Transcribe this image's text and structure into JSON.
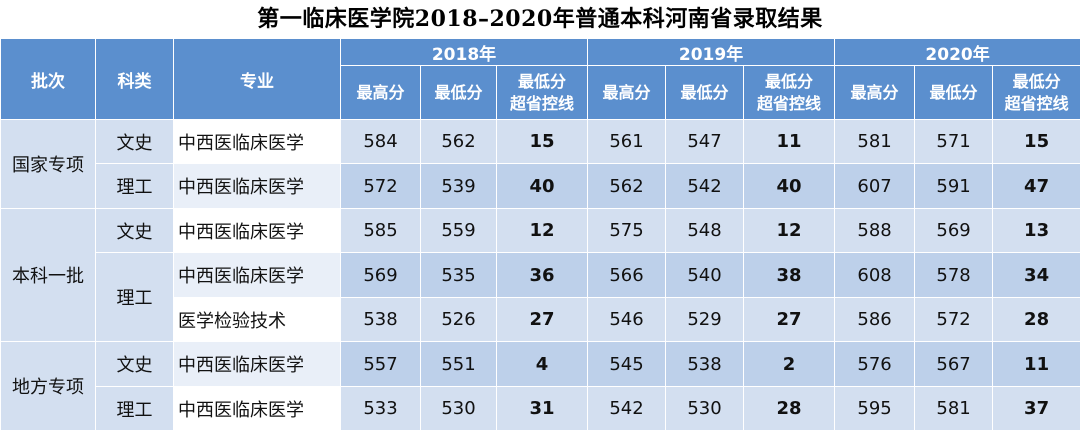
{
  "title": "第一临床医学院2018–2020年普通本科河南省录取结果",
  "headers": {
    "batch": "批次",
    "category": "科类",
    "major": "专业",
    "years": [
      "2018年",
      "2019年",
      "2020年"
    ],
    "max": "最高分",
    "min": "最低分",
    "over_line": [
      "最低分",
      "超省控线"
    ]
  },
  "rows": [
    {
      "batch": "国家专项",
      "category": "文史",
      "major": "中西医临床医学",
      "y2018": [
        "584",
        "562",
        "15"
      ],
      "y2019": [
        "561",
        "547",
        "11"
      ],
      "y2020": [
        "581",
        "571",
        "15"
      ]
    },
    {
      "batch": "",
      "category": "理工",
      "major": "中西医临床医学",
      "y2018": [
        "572",
        "539",
        "40"
      ],
      "y2019": [
        "562",
        "542",
        "40"
      ],
      "y2020": [
        "607",
        "591",
        "47"
      ]
    },
    {
      "batch": "本科一批",
      "category": "文史",
      "major": "中西医临床医学",
      "y2018": [
        "585",
        "559",
        "12"
      ],
      "y2019": [
        "575",
        "548",
        "12"
      ],
      "y2020": [
        "588",
        "569",
        "13"
      ]
    },
    {
      "batch": "",
      "category": "理工",
      "major": "中西医临床医学",
      "y2018": [
        "569",
        "535",
        "36"
      ],
      "y2019": [
        "566",
        "540",
        "38"
      ],
      "y2020": [
        "608",
        "578",
        "34"
      ]
    },
    {
      "batch": "",
      "category": "",
      "major": "医学检验技术",
      "y2018": [
        "538",
        "526",
        "27"
      ],
      "y2019": [
        "546",
        "529",
        "27"
      ],
      "y2020": [
        "586",
        "572",
        "28"
      ]
    },
    {
      "batch": "地方专项",
      "category": "文史",
      "major": "中西医临床医学",
      "y2018": [
        "557",
        "551",
        "4"
      ],
      "y2019": [
        "545",
        "538",
        "2"
      ],
      "y2020": [
        "576",
        "567",
        "11"
      ]
    },
    {
      "batch": "",
      "category": "理工",
      "major": "中西医临床医学",
      "y2018": [
        "533",
        "530",
        "31"
      ],
      "y2019": [
        "542",
        "530",
        "28"
      ],
      "y2020": [
        "595",
        "581",
        "37"
      ]
    }
  ]
}
